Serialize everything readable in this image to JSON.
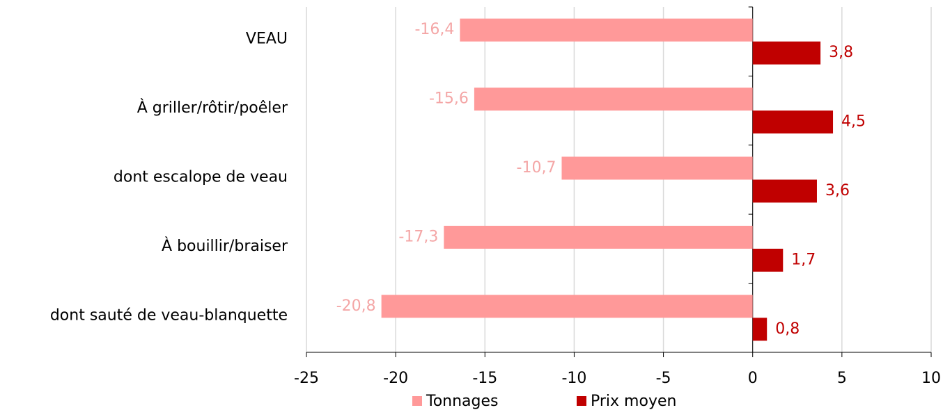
{
  "chart_data": {
    "type": "barh",
    "categories": [
      "VEAU",
      "À griller/rôtir/poêler",
      "dont escalope de veau",
      "À bouillir/braiser",
      "dont sauté de veau-blanquette"
    ],
    "series": [
      {
        "name": "Tonnages",
        "color": "#ff9999",
        "label_color": "#f4a6a6",
        "values": [
          -16.4,
          -15.6,
          -10.7,
          -17.3,
          -20.8
        ],
        "value_labels": [
          "-16,4",
          "-15,6",
          "-10,7",
          "-17,3",
          "-20,8"
        ]
      },
      {
        "name": "Prix moyen",
        "color": "#c00000",
        "label_color": "#c00000",
        "values": [
          3.8,
          4.5,
          3.6,
          1.7,
          0.8
        ],
        "value_labels": [
          "3,8",
          "4,5",
          "3,6",
          "1,7",
          "0,8"
        ]
      }
    ],
    "xlim": [
      -25,
      10
    ],
    "xticks": [
      -25,
      -20,
      -15,
      -10,
      -5,
      0,
      5,
      10
    ],
    "grid": true,
    "legend": "bottom"
  }
}
